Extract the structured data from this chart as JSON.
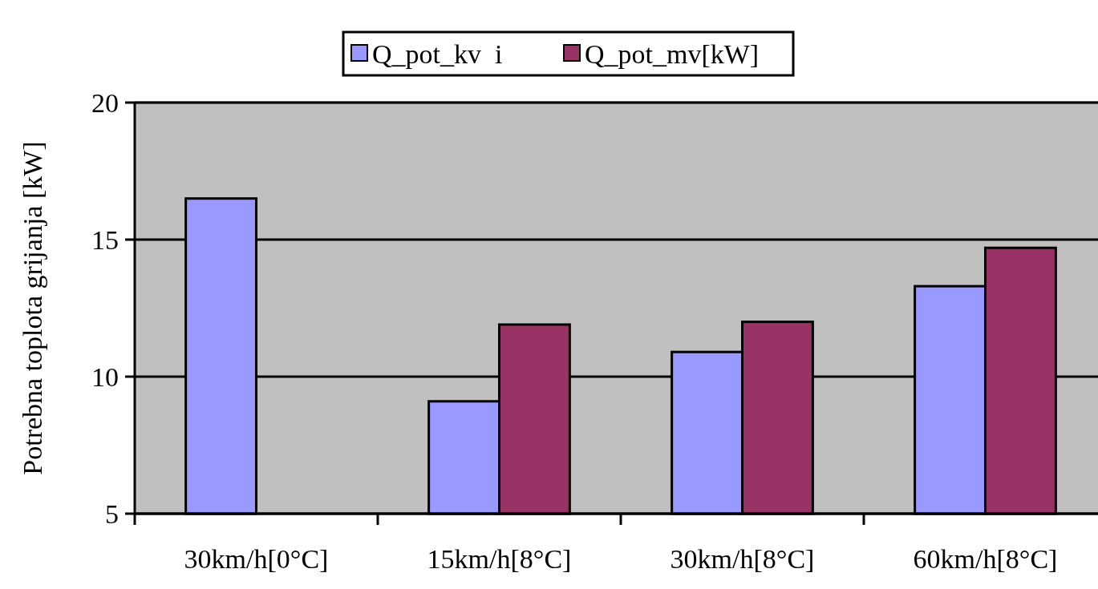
{
  "chart_data": {
    "type": "bar",
    "ylabel": "Potrebna toplota grijanja [kW]",
    "categories": [
      "30km/h[0°C]",
      "15km/h[8°C]",
      "30km/h[8°C]",
      "60km/h[8°C]"
    ],
    "series": [
      {
        "name": "Q_pot_kv  i",
        "color": "#9999ff",
        "values": [
          16.5,
          9.1,
          10.9,
          13.3
        ]
      },
      {
        "name": "Q_pot_mv[kW]",
        "color": "#993366",
        "values": [
          null,
          11.9,
          12.0,
          14.7
        ]
      }
    ],
    "ylim": [
      5,
      20
    ],
    "yticks": [
      5,
      10,
      15,
      20
    ],
    "grid": "y",
    "legend": "top"
  }
}
